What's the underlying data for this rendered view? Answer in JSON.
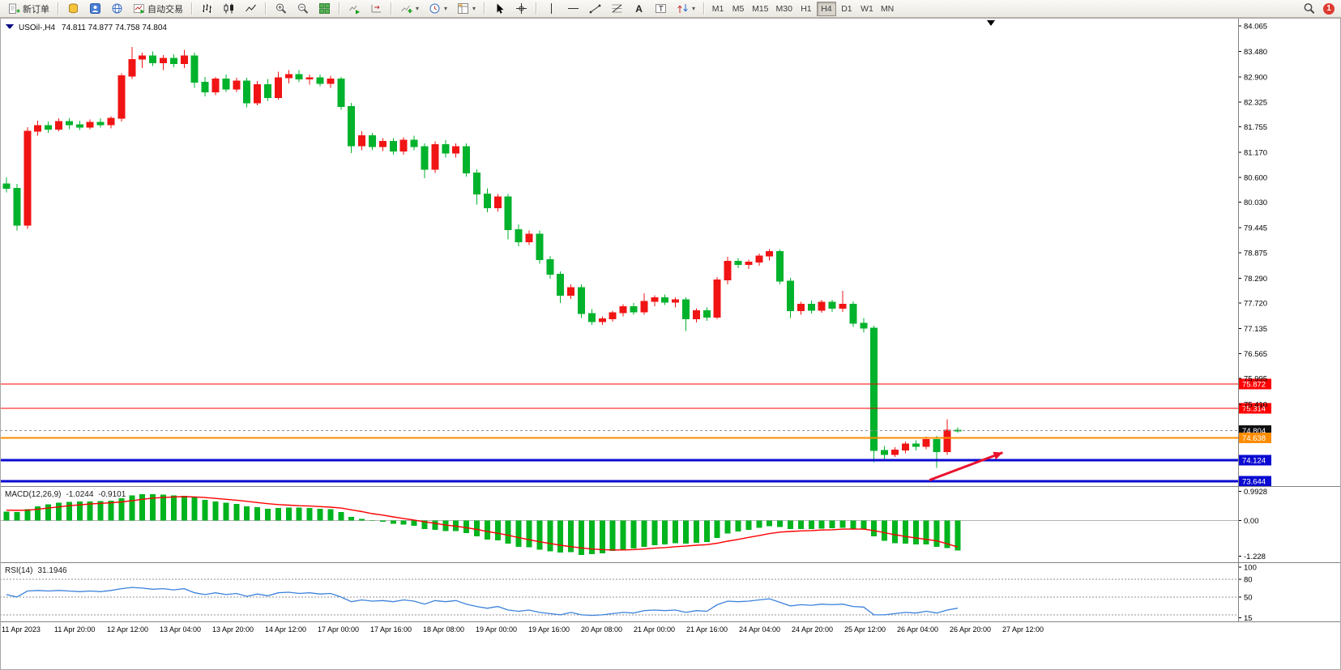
{
  "toolbar": {
    "new_order_label": "新订单",
    "autotrading_label": "自动交易",
    "timeframes": [
      "M1",
      "M5",
      "M15",
      "M30",
      "H1",
      "H4",
      "D1",
      "W1",
      "MN"
    ],
    "active_timeframe": "H4",
    "notification_count": "1"
  },
  "chart_data": {
    "type": "candlestick",
    "symbol": "USOil-",
    "timeframe": "H4",
    "header_symbol": "USOil-,H4",
    "header_ohlc": "74.811 74.877 74.758 74.804",
    "current_price": 74.804,
    "price_axis_anchor": {
      "top_price": 84.065,
      "bottom_price": 73.644
    },
    "price_ticks": [
      "84.065",
      "83.480",
      "82.900",
      "82.325",
      "81.755",
      "81.170",
      "80.600",
      "80.030",
      "79.445",
      "78.875",
      "78.290",
      "77.720",
      "77.135",
      "76.565",
      "75.995",
      "75.410"
    ],
    "time_labels": [
      "11 Apr 2023",
      "11 Apr 20:00",
      "12 Apr 12:00",
      "13 Apr 04:00",
      "13 Apr 20:00",
      "14 Apr 12:00",
      "17 Apr 00:00",
      "17 Apr 16:00",
      "18 Apr 08:00",
      "19 Apr 00:00",
      "19 Apr 16:00",
      "20 Apr 08:00",
      "21 Apr 00:00",
      "21 Apr 16:00",
      "24 Apr 04:00",
      "24 Apr 20:00",
      "25 Apr 12:00",
      "26 Apr 04:00",
      "26 Apr 20:00",
      "27 Apr 12:00"
    ],
    "colors": {
      "up": "#f01414",
      "down": "#00b22c",
      "macd_histogram": "#00b41e",
      "macd_signal": "#ff0000",
      "rsi_line": "#3c82dc",
      "bid_line": "#909090",
      "bid_box": "#101010"
    },
    "hlines": [
      {
        "name": "resistance-line-1",
        "price": 75.872,
        "label": "75.872",
        "color": "#ff0000",
        "width": 1,
        "style": "solid"
      },
      {
        "name": "resistance-line-2",
        "price": 75.314,
        "label": "75.314",
        "color": "#ff0000",
        "width": 1,
        "style": "solid"
      },
      {
        "name": "bid-price-line",
        "price": 74.804,
        "label": "74.804",
        "color": "#909090",
        "box": "#101010",
        "width": 1,
        "style": "dashed"
      },
      {
        "name": "support-line-orange",
        "price": 74.638,
        "label": "74.638",
        "color": "#ff8c00",
        "width": 2,
        "style": "solid"
      },
      {
        "name": "support-line-blue-1",
        "price": 74.124,
        "label": "74.124",
        "color": "#0a0ad2",
        "width": 3,
        "style": "solid"
      },
      {
        "name": "support-line-blue-2",
        "price": 73.644,
        "label": "73.644",
        "color": "#0a0ad2",
        "width": 3,
        "style": "solid"
      }
    ],
    "annotations": [
      {
        "type": "arrow",
        "color": "#e8112d",
        "width": 3,
        "from": {
          "t": 88.3,
          "price": 73.67
        },
        "to": {
          "t": 95.3,
          "price": 74.3
        }
      }
    ],
    "candles": [
      [
        80.45,
        80.6,
        80.25,
        80.35
      ],
      [
        80.35,
        80.45,
        79.38,
        79.5
      ],
      [
        79.5,
        81.75,
        79.42,
        81.65
      ],
      [
        81.65,
        81.9,
        81.55,
        81.78
      ],
      [
        81.78,
        81.88,
        81.62,
        81.7
      ],
      [
        81.7,
        81.95,
        81.65,
        81.88
      ],
      [
        81.88,
        81.95,
        81.7,
        81.8
      ],
      [
        81.8,
        81.9,
        81.68,
        81.75
      ],
      [
        81.75,
        81.92,
        81.7,
        81.86
      ],
      [
        81.86,
        81.95,
        81.74,
        81.8
      ],
      [
        81.8,
        82.0,
        81.72,
        81.95
      ],
      [
        81.95,
        82.98,
        81.88,
        82.92
      ],
      [
        82.92,
        83.58,
        82.85,
        83.3
      ],
      [
        83.3,
        83.45,
        83.1,
        83.38
      ],
      [
        83.38,
        83.48,
        83.15,
        83.22
      ],
      [
        83.22,
        83.4,
        83.05,
        83.32
      ],
      [
        83.32,
        83.42,
        83.12,
        83.2
      ],
      [
        83.2,
        83.52,
        83.1,
        83.38
      ],
      [
        83.38,
        83.45,
        82.65,
        82.78
      ],
      [
        82.78,
        82.9,
        82.45,
        82.55
      ],
      [
        82.55,
        82.9,
        82.48,
        82.85
      ],
      [
        82.85,
        82.95,
        82.55,
        82.62
      ],
      [
        82.62,
        82.88,
        82.55,
        82.8
      ],
      [
        82.8,
        82.88,
        82.2,
        82.3
      ],
      [
        82.3,
        82.8,
        82.25,
        82.72
      ],
      [
        82.72,
        82.85,
        82.35,
        82.42
      ],
      [
        82.42,
        83.02,
        82.38,
        82.88
      ],
      [
        82.88,
        83.05,
        82.75,
        82.95
      ],
      [
        82.95,
        83.05,
        82.78,
        82.85
      ],
      [
        82.85,
        82.95,
        82.72,
        82.88
      ],
      [
        82.88,
        82.95,
        82.68,
        82.75
      ],
      [
        82.75,
        82.92,
        82.65,
        82.85
      ],
      [
        82.85,
        82.9,
        82.15,
        82.22
      ],
      [
        82.22,
        82.3,
        81.15,
        81.32
      ],
      [
        81.32,
        81.65,
        81.22,
        81.55
      ],
      [
        81.55,
        81.62,
        81.22,
        81.3
      ],
      [
        81.3,
        81.5,
        81.2,
        81.42
      ],
      [
        81.42,
        81.5,
        81.12,
        81.2
      ],
      [
        81.2,
        81.52,
        81.12,
        81.45
      ],
      [
        81.45,
        81.55,
        81.22,
        81.3
      ],
      [
        81.3,
        81.38,
        80.58,
        80.78
      ],
      [
        80.78,
        81.42,
        80.7,
        81.35
      ],
      [
        81.35,
        81.45,
        81.05,
        81.15
      ],
      [
        81.15,
        81.38,
        81.05,
        81.3
      ],
      [
        81.3,
        81.38,
        80.62,
        80.7
      ],
      [
        80.7,
        80.78,
        79.98,
        80.22
      ],
      [
        80.22,
        80.35,
        79.8,
        79.9
      ],
      [
        79.9,
        80.22,
        79.82,
        80.15
      ],
      [
        80.15,
        80.22,
        79.18,
        79.4
      ],
      [
        79.4,
        79.52,
        79.02,
        79.12
      ],
      [
        79.12,
        79.38,
        79.05,
        79.3
      ],
      [
        79.3,
        79.38,
        78.62,
        78.72
      ],
      [
        78.72,
        78.8,
        78.28,
        78.38
      ],
      [
        78.38,
        78.45,
        77.72,
        77.9
      ],
      [
        77.9,
        78.15,
        77.82,
        78.08
      ],
      [
        78.08,
        78.15,
        77.38,
        77.48
      ],
      [
        77.48,
        77.58,
        77.22,
        77.3
      ],
      [
        77.3,
        77.42,
        77.22,
        77.36
      ],
      [
        77.36,
        77.55,
        77.3,
        77.5
      ],
      [
        77.5,
        77.7,
        77.42,
        77.64
      ],
      [
        77.64,
        77.72,
        77.45,
        77.52
      ],
      [
        77.52,
        77.95,
        77.45,
        77.76
      ],
      [
        77.76,
        77.9,
        77.65,
        77.84
      ],
      [
        77.84,
        77.92,
        77.68,
        77.74
      ],
      [
        77.74,
        77.85,
        77.62,
        77.8
      ],
      [
        77.8,
        77.85,
        77.08,
        77.36
      ],
      [
        77.36,
        77.6,
        77.28,
        77.55
      ],
      [
        77.55,
        77.62,
        77.32,
        77.4
      ],
      [
        77.4,
        78.32,
        77.35,
        78.25
      ],
      [
        78.25,
        78.78,
        78.15,
        78.68
      ],
      [
        78.68,
        78.75,
        78.52,
        78.6
      ],
      [
        78.6,
        78.72,
        78.5,
        78.66
      ],
      [
        78.66,
        78.85,
        78.58,
        78.8
      ],
      [
        78.8,
        78.96,
        78.7,
        78.9
      ],
      [
        78.9,
        78.95,
        78.15,
        78.22
      ],
      [
        78.22,
        78.3,
        77.38,
        77.55
      ],
      [
        77.55,
        77.75,
        77.45,
        77.7
      ],
      [
        77.7,
        77.78,
        77.48,
        77.56
      ],
      [
        77.56,
        77.8,
        77.5,
        77.74
      ],
      [
        77.74,
        77.8,
        77.52,
        77.6
      ],
      [
        77.6,
        78.0,
        77.52,
        77.7
      ],
      [
        77.7,
        77.76,
        77.18,
        77.26
      ],
      [
        77.26,
        77.38,
        77.05,
        77.15
      ],
      [
        77.15,
        77.2,
        74.08,
        74.35
      ],
      [
        74.35,
        74.45,
        74.15,
        74.26
      ],
      [
        74.26,
        74.42,
        74.2,
        74.36
      ],
      [
        74.36,
        74.55,
        74.28,
        74.5
      ],
      [
        74.5,
        74.58,
        74.35,
        74.44
      ],
      [
        74.44,
        74.66,
        74.38,
        74.6
      ],
      [
        74.6,
        74.68,
        73.95,
        74.32
      ],
      [
        74.32,
        75.06,
        74.25,
        74.81
      ],
      [
        74.811,
        74.877,
        74.758,
        74.804
      ]
    ],
    "macd": {
      "label": "MACD(12,26,9)",
      "value": "-1.0244",
      "signal_value": "-0.9101",
      "ticks": [
        "0.9928",
        "0.00",
        "-1.228"
      ],
      "range": [
        -1.32,
        1.06
      ],
      "histogram": [
        0.3,
        0.28,
        0.38,
        0.48,
        0.55,
        0.6,
        0.63,
        0.64,
        0.65,
        0.66,
        0.67,
        0.75,
        0.85,
        0.9,
        0.9,
        0.88,
        0.85,
        0.84,
        0.78,
        0.7,
        0.65,
        0.6,
        0.56,
        0.48,
        0.45,
        0.4,
        0.42,
        0.44,
        0.44,
        0.43,
        0.4,
        0.38,
        0.28,
        0.12,
        0.05,
        -0.02,
        -0.05,
        -0.12,
        -0.15,
        -0.18,
        -0.3,
        -0.32,
        -0.36,
        -0.36,
        -0.44,
        -0.55,
        -0.65,
        -0.68,
        -0.8,
        -0.9,
        -0.92,
        -1.0,
        -1.06,
        -1.1,
        -1.08,
        -1.18,
        -1.16,
        -1.12,
        -1.05,
        -1.0,
        -0.96,
        -0.9,
        -0.85,
        -0.82,
        -0.78,
        -0.8,
        -0.76,
        -0.74,
        -0.6,
        -0.45,
        -0.38,
        -0.32,
        -0.26,
        -0.2,
        -0.22,
        -0.3,
        -0.3,
        -0.3,
        -0.28,
        -0.27,
        -0.25,
        -0.28,
        -0.3,
        -0.55,
        -0.7,
        -0.78,
        -0.8,
        -0.82,
        -0.82,
        -0.9,
        -0.95,
        -1.0244
      ],
      "signal": [
        0.35,
        0.34,
        0.35,
        0.38,
        0.42,
        0.46,
        0.5,
        0.53,
        0.56,
        0.58,
        0.6,
        0.63,
        0.67,
        0.72,
        0.76,
        0.78,
        0.8,
        0.81,
        0.8,
        0.78,
        0.75,
        0.72,
        0.69,
        0.65,
        0.61,
        0.57,
        0.54,
        0.52,
        0.5,
        0.49,
        0.47,
        0.45,
        0.42,
        0.36,
        0.3,
        0.23,
        0.18,
        0.12,
        0.06,
        0.01,
        -0.05,
        -0.1,
        -0.16,
        -0.2,
        -0.25,
        -0.31,
        -0.38,
        -0.44,
        -0.51,
        -0.59,
        -0.66,
        -0.73,
        -0.79,
        -0.85,
        -0.9,
        -0.94,
        -0.98,
        -1.0,
        -1.01,
        -1.01,
        -1.0,
        -0.98,
        -0.95,
        -0.93,
        -0.9,
        -0.88,
        -0.85,
        -0.83,
        -0.78,
        -0.71,
        -0.65,
        -0.58,
        -0.52,
        -0.45,
        -0.4,
        -0.38,
        -0.36,
        -0.35,
        -0.33,
        -0.32,
        -0.3,
        -0.3,
        -0.3,
        -0.35,
        -0.42,
        -0.49,
        -0.55,
        -0.6,
        -0.65,
        -0.7,
        -0.8,
        -0.9101
      ]
    },
    "rsi": {
      "label": "RSI(14)",
      "value": "31.1946",
      "ticks": [
        "100",
        "80",
        "50",
        "15"
      ],
      "levels": [
        80,
        50,
        20
      ],
      "range": [
        13,
        103
      ],
      "values": [
        54,
        50,
        60,
        61,
        60,
        61,
        60,
        59,
        60,
        59,
        61,
        64,
        66,
        65,
        63,
        64,
        62,
        64,
        57,
        54,
        57,
        54,
        56,
        51,
        55,
        52,
        57,
        58,
        56,
        57,
        55,
        56,
        50,
        42,
        45,
        43,
        44,
        42,
        45,
        43,
        38,
        44,
        42,
        44,
        38,
        34,
        31,
        34,
        28,
        26,
        28,
        24,
        22,
        20,
        24,
        20,
        19,
        20,
        22,
        24,
        23,
        27,
        28,
        27,
        28,
        24,
        27,
        26,
        37,
        43,
        42,
        43,
        45,
        47,
        41,
        35,
        37,
        36,
        38,
        37,
        38,
        34,
        33,
        20,
        20,
        22,
        24,
        23,
        26,
        23,
        28,
        31.19
      ]
    }
  }
}
